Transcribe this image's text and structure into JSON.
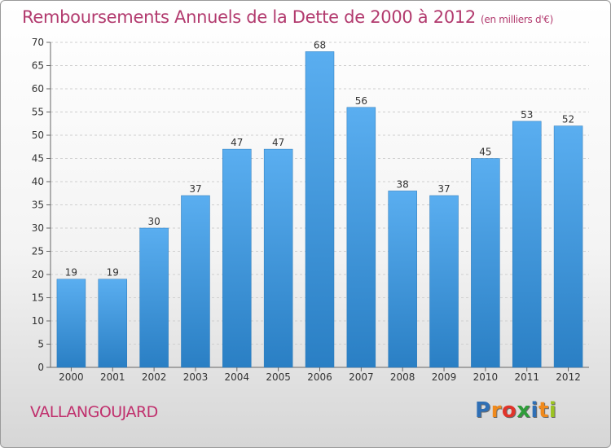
{
  "title": "Remboursements Annuels de la Dette de 2000 à 2012",
  "unit_note": "(en milliers d'€)",
  "town": "VALLANGOUJARD",
  "logo": {
    "text": "Proxiti",
    "colors": [
      "#2f6fb5",
      "#f08a1c",
      "#e0342a",
      "#2f9d3a",
      "#2f6fb5",
      "#f08a1c",
      "#9bc322"
    ]
  },
  "colors": {
    "bar_light": "#5aaef0",
    "bar_dark": "#2a7fc4",
    "title": "#b23a6e"
  },
  "chart_data": {
    "type": "bar",
    "categories": [
      "2000",
      "2001",
      "2002",
      "2003",
      "2004",
      "2005",
      "2006",
      "2007",
      "2008",
      "2009",
      "2010",
      "2011",
      "2012"
    ],
    "values": [
      19,
      19,
      30,
      37,
      47,
      47,
      68,
      56,
      38,
      37,
      45,
      53,
      52
    ],
    "ylim": [
      0,
      70
    ],
    "yticks": [
      0,
      5,
      10,
      15,
      20,
      25,
      30,
      35,
      40,
      45,
      50,
      55,
      60,
      65,
      70
    ],
    "grid": "horizontal",
    "title": "Remboursements Annuels de la Dette de 2000 à 2012",
    "xlabel": "",
    "ylabel": ""
  }
}
